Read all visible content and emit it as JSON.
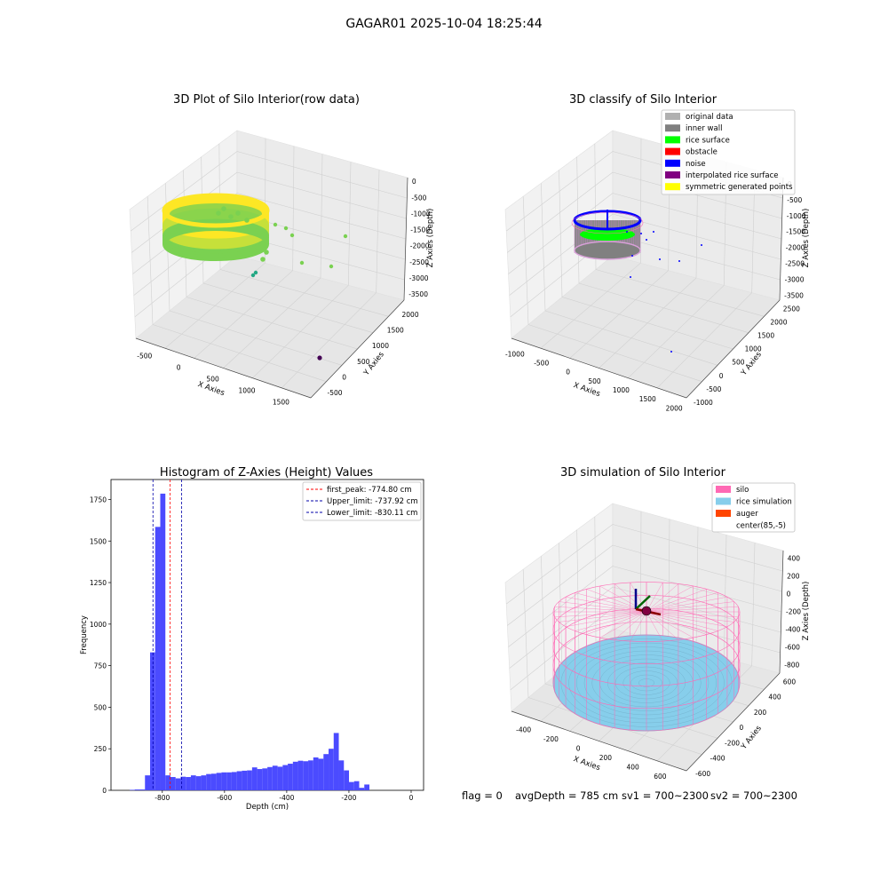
{
  "suptitle": "GAGAR01 2025-10-04 18:25:44",
  "status": {
    "flag": "flag = 0",
    "avg_depth": "avgDepth = 785 cm",
    "sv1": "sv1 = 700~2300",
    "sv2": "sv2 = 700~2300"
  },
  "chart_data": [
    {
      "type": "scatter",
      "projection": "3d",
      "title": "3D Plot of Silo Interior(row data)",
      "xlabel": "X Axies",
      "ylabel": "Y Axies",
      "zlabel": "Z Axies (Depth)",
      "x_ticks": [
        "-500",
        "0",
        "500",
        "1000",
        "1500"
      ],
      "y_ticks": [
        "-500",
        "0",
        "500",
        "1000",
        "1500",
        "2000"
      ],
      "z_ticks": [
        "0",
        "-500",
        "-1000",
        "-1500",
        "-2000",
        "-2500",
        "-3000",
        "-3500"
      ],
      "colormap": [
        "#fde725",
        "#7ad151",
        "#22a884",
        "#2a788e",
        "#440154"
      ],
      "grid": true
    },
    {
      "type": "scatter",
      "projection": "3d",
      "title": "3D classify of Silo Interior",
      "xlabel": "X Axies",
      "ylabel": "Y Axies",
      "zlabel": "Z Axies (Depth)",
      "x_ticks": [
        "-1000",
        "-500",
        "0",
        "500",
        "1000",
        "1500",
        "2000"
      ],
      "y_ticks": [
        "-1000",
        "-500",
        "0",
        "500",
        "1000",
        "1500",
        "2000",
        "2500"
      ],
      "z_ticks": [
        "0",
        "-500",
        "-1000",
        "-1500",
        "-2000",
        "-2500",
        "-3000",
        "-3500"
      ],
      "legend": [
        {
          "label": "original data",
          "color": "#b0b0b0"
        },
        {
          "label": "inner wall",
          "color": "#808080"
        },
        {
          "label": "rice surface",
          "color": "#00ff00"
        },
        {
          "label": "obstacle",
          "color": "#ff0000"
        },
        {
          "label": "noise",
          "color": "#0000ff"
        },
        {
          "label": "interpolated rice surface",
          "color": "#800080"
        },
        {
          "label": "symmetric generated points",
          "color": "#ffff00"
        }
      ],
      "legend_loc": "upper-right",
      "grid": true
    },
    {
      "type": "bar",
      "title": "Histogram of Z-Axies (Height) Values",
      "xlabel": "Depth (cm)",
      "ylabel": "Frequency",
      "bar_color": "#4b4bff",
      "xlim": [
        -965,
        40
      ],
      "ylim": [
        0,
        1870
      ],
      "x_ticks": [
        -800,
        -600,
        -400,
        -200,
        0
      ],
      "y_ticks": [
        0,
        250,
        500,
        750,
        1000,
        1250,
        1500,
        1750
      ],
      "bin_width": 16.4,
      "bin_start": -905,
      "values": [
        3,
        5,
        5,
        90,
        830,
        1585,
        1785,
        90,
        80,
        72,
        82,
        80,
        90,
        85,
        90,
        98,
        100,
        105,
        108,
        108,
        110,
        115,
        118,
        120,
        138,
        128,
        132,
        140,
        148,
        142,
        152,
        160,
        172,
        178,
        175,
        180,
        198,
        190,
        218,
        250,
        345,
        180,
        120,
        50,
        55,
        15,
        35
      ],
      "lines": [
        {
          "label": "first_peak: -774.80 cm",
          "x": -774.8,
          "color": "#ff0000"
        },
        {
          "label": "Upper_limit: -737.92 cm",
          "x": -737.92,
          "color": "#0000aa"
        },
        {
          "label": "Lower_limit: -830.11 cm",
          "x": -830.11,
          "color": "#0000aa"
        }
      ],
      "legend_loc": "upper-right"
    },
    {
      "type": "scatter",
      "projection": "3d",
      "title": "3D simulation of Silo Interior",
      "xlabel": "X Axies",
      "ylabel": "Y Axies",
      "zlabel": "Z Axies (Depth)",
      "x_ticks": [
        "-400",
        "-200",
        "0",
        "200",
        "400",
        "600"
      ],
      "y_ticks": [
        "-600",
        "-400",
        "-200",
        "0",
        "200",
        "400",
        "600"
      ],
      "z_ticks": [
        "400",
        "200",
        "0",
        "-200",
        "-400",
        "-600",
        "-800"
      ],
      "legend": [
        {
          "label": "silo",
          "color": "#ff69b4"
        },
        {
          "label": "rice simulation",
          "color": "#87ceeb"
        },
        {
          "label": "auger",
          "color": "#ff4500"
        },
        {
          "label": "center(85,-5)",
          "color": "#ffffff"
        }
      ],
      "legend_loc": "upper-right",
      "grid": true
    }
  ]
}
